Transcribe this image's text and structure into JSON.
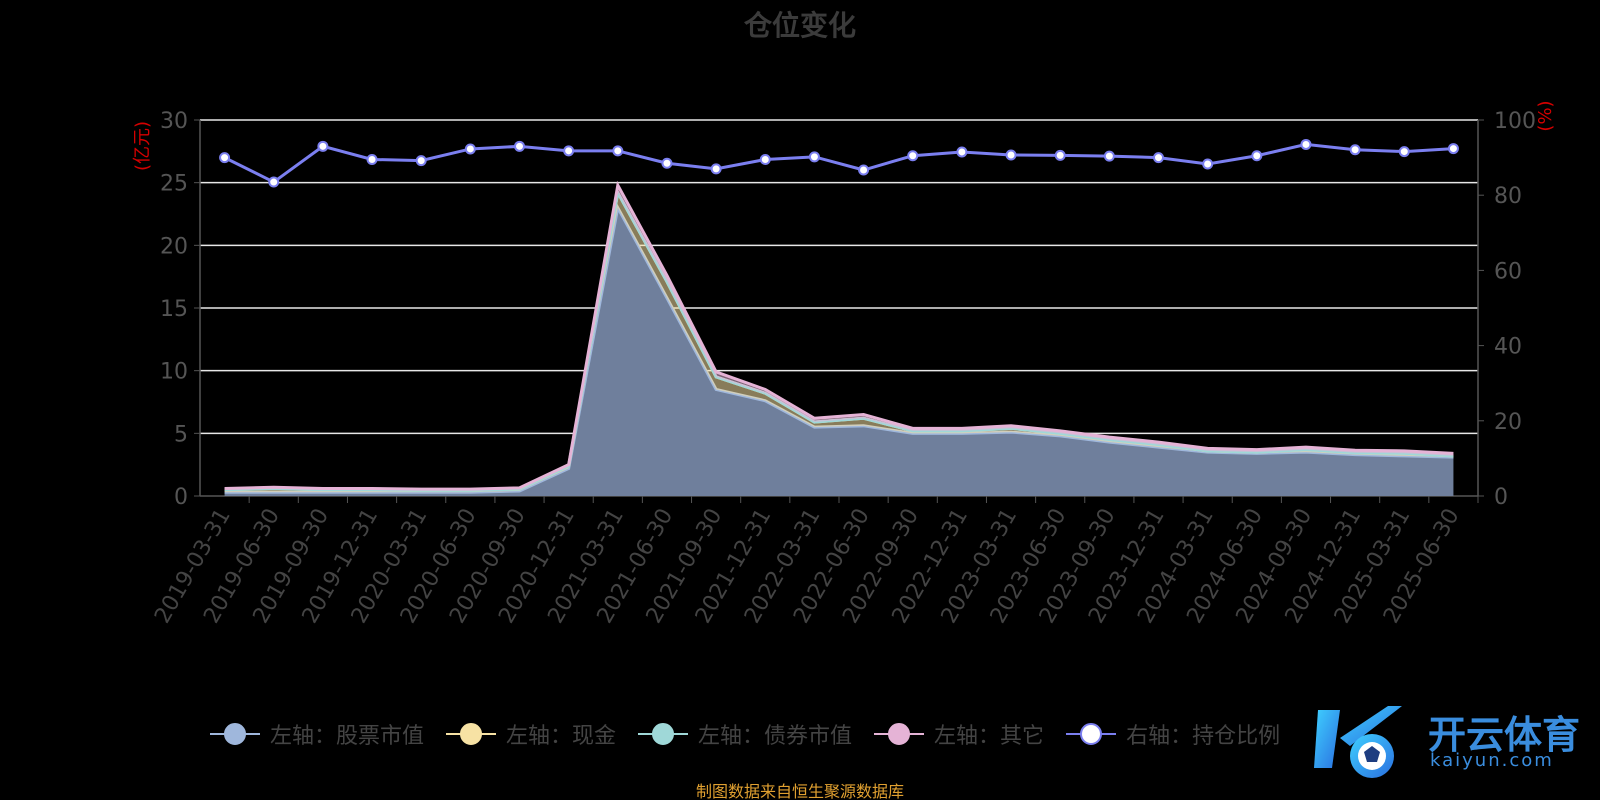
{
  "chart_data": {
    "type": "area",
    "title": "仓位变化",
    "source_note": "制图数据来自恒生聚源数据库",
    "y_left_label": "(亿元)",
    "y_right_label": "(%)",
    "y_left_range": [
      0,
      30
    ],
    "y_left_ticks": [
      "0",
      "5",
      "10",
      "15",
      "20",
      "25",
      "30"
    ],
    "y_right_range": [
      0,
      100
    ],
    "y_right_ticks": [
      "0",
      "20",
      "40",
      "60",
      "80",
      "100"
    ],
    "grid": true,
    "legend_position": "bottom",
    "categories": [
      "2019-03-31",
      "2019-06-30",
      "2019-09-30",
      "2019-12-31",
      "2020-03-31",
      "2020-06-30",
      "2020-09-30",
      "2020-12-31",
      "2021-03-31",
      "2021-06-30",
      "2021-09-30",
      "2021-12-31",
      "2022-03-31",
      "2022-06-30",
      "2022-09-30",
      "2022-12-31",
      "2023-03-31",
      "2023-06-30",
      "2023-09-30",
      "2023-12-31",
      "2024-03-31",
      "2024-06-30",
      "2024-09-30",
      "2024-12-31",
      "2025-03-31",
      "2025-06-30"
    ],
    "series": [
      {
        "name": "左轴：股票市值",
        "axis": "left",
        "color": "#9fb7dc",
        "values": [
          0.3,
          0.3,
          0.3,
          0.3,
          0.3,
          0.3,
          0.4,
          2.2,
          23.0,
          15.8,
          8.5,
          7.6,
          5.5,
          5.6,
          5.0,
          5.0,
          5.1,
          4.8,
          4.3,
          3.9,
          3.5,
          3.4,
          3.5,
          3.3,
          3.2,
          3.1
        ]
      },
      {
        "name": "左轴：现金",
        "axis": "left",
        "color": "#f7e2a4",
        "values": [
          0.2,
          0.3,
          0.2,
          0.2,
          0.15,
          0.15,
          0.15,
          0.2,
          1.2,
          1.3,
          1.0,
          0.6,
          0.4,
          0.6,
          0.2,
          0.2,
          0.3,
          0.2,
          0.2,
          0.2,
          0.1,
          0.1,
          0.2,
          0.15,
          0.2,
          0.1
        ]
      },
      {
        "name": "左轴：债券市值",
        "axis": "left",
        "color": "#9fd8d8",
        "values": [
          0,
          0,
          0,
          0,
          0,
          0,
          0,
          0,
          0,
          0,
          0,
          0,
          0,
          0,
          0,
          0,
          0,
          0,
          0,
          0,
          0,
          0,
          0,
          0,
          0,
          0
        ]
      },
      {
        "name": "左轴：其它",
        "axis": "left",
        "color": "#e5b3d6",
        "values": [
          0.1,
          0.1,
          0.1,
          0.1,
          0.1,
          0.1,
          0.1,
          0.1,
          0.6,
          0.5,
          0.4,
          0.3,
          0.3,
          0.3,
          0.2,
          0.2,
          0.2,
          0.2,
          0.2,
          0.2,
          0.2,
          0.2,
          0.2,
          0.2,
          0.2,
          0.2
        ]
      },
      {
        "name": "右轴：持仓比例",
        "axis": "right",
        "color": "#7b7ff0",
        "values": [
          90.0,
          83.5,
          93.0,
          89.5,
          89.2,
          92.3,
          93.0,
          91.8,
          91.8,
          88.5,
          87.0,
          89.5,
          90.2,
          86.7,
          90.5,
          91.5,
          90.7,
          90.6,
          90.4,
          90.0,
          88.3,
          90.5,
          93.5,
          92.1,
          91.6,
          92.4
        ]
      }
    ]
  },
  "watermark": {
    "text": "开云体育",
    "sub": "kaiyun.com"
  }
}
